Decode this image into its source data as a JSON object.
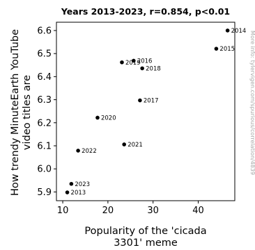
{
  "chart_data": {
    "type": "scatter",
    "title": "Years 2013-2023, r=0.854, p<0.01",
    "xlabel_lines": [
      "Popularity of the 'cicada",
      "3301' meme"
    ],
    "ylabel_lines": [
      "How trendy MinuteEarth YouTube",
      "video titles are"
    ],
    "side_note": "More info: tylervigen.com/spurious/correlation/4839",
    "xlim": [
      8.6,
      48.1
    ],
    "ylim": [
      5.862,
      6.636
    ],
    "x_ticks": [
      10,
      20,
      30,
      40
    ],
    "y_ticks": [
      5.9,
      6.0,
      6.1,
      6.2,
      6.3,
      6.4,
      6.5,
      6.6
    ],
    "point_color": "#000000",
    "points": [
      {
        "label": "2013",
        "x": 11.0,
        "y": 5.898
      },
      {
        "label": "2014",
        "x": 46.5,
        "y": 6.6
      },
      {
        "label": "2015",
        "x": 44.0,
        "y": 6.521
      },
      {
        "label": "2016",
        "x": 25.7,
        "y": 6.469
      },
      {
        "label": "2017",
        "x": 27.1,
        "y": 6.297
      },
      {
        "label": "2018",
        "x": 27.6,
        "y": 6.436
      },
      {
        "label": "2019",
        "x": 23.1,
        "y": 6.462
      },
      {
        "label": "2020",
        "x": 17.7,
        "y": 6.222
      },
      {
        "label": "2021",
        "x": 23.6,
        "y": 6.106
      },
      {
        "label": "2022",
        "x": 13.4,
        "y": 6.079
      },
      {
        "label": "2023",
        "x": 11.9,
        "y": 5.935
      }
    ]
  }
}
